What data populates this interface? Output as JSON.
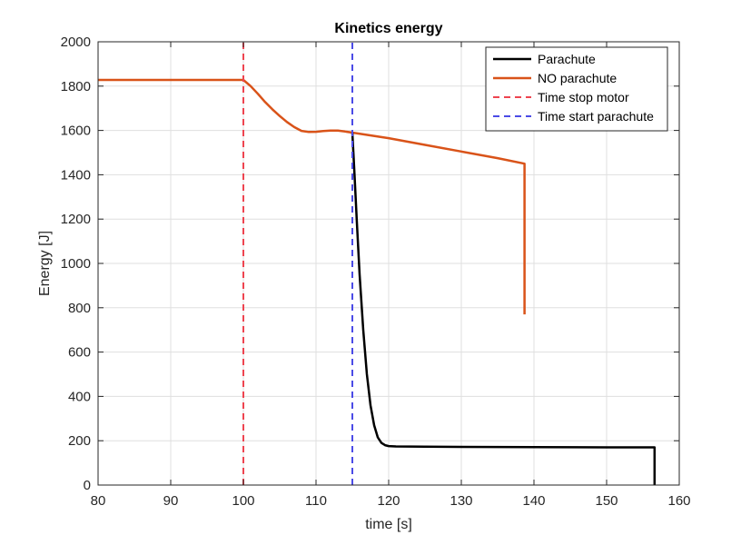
{
  "chart_data": {
    "type": "line",
    "title": "Kinetics energy",
    "xlabel": "time [s]",
    "ylabel": "Energy [J]",
    "xlim": [
      80,
      160
    ],
    "ylim": [
      0,
      2000
    ],
    "xticks": [
      80,
      90,
      100,
      110,
      120,
      130,
      140,
      150,
      160
    ],
    "yticks": [
      0,
      200,
      400,
      600,
      800,
      1000,
      1200,
      1400,
      1600,
      1800,
      2000
    ],
    "grid": true,
    "legend_position": "top-right",
    "series": [
      {
        "name": "Parachute",
        "color": "#000000",
        "style": "solid",
        "x": [
          115.0,
          115.3,
          115.6,
          116.0,
          116.5,
          117.0,
          117.5,
          118.0,
          118.5,
          119.0,
          119.5,
          120.0,
          121.0,
          125.0,
          130.0,
          140.0,
          150.0,
          156.6,
          156.6
        ],
        "y": [
          1590,
          1400,
          1200,
          950,
          700,
          500,
          360,
          270,
          215,
          190,
          180,
          176,
          174,
          173,
          172,
          171,
          170,
          170,
          0
        ]
      },
      {
        "name": "NO parachute",
        "color": "#D95319",
        "style": "solid",
        "x": [
          80,
          100,
          101,
          102,
          103,
          104,
          105,
          106,
          107,
          108,
          109,
          110,
          111,
          112,
          113,
          114,
          115,
          120,
          125,
          130,
          135,
          138.7,
          138.7
        ],
        "y": [
          1828,
          1828,
          1800,
          1765,
          1728,
          1695,
          1665,
          1638,
          1615,
          1598,
          1593,
          1594,
          1597,
          1599,
          1599,
          1595,
          1590,
          1565,
          1535,
          1505,
          1475,
          1450,
          770
        ]
      },
      {
        "name": "Time stop motor",
        "color": "#EE4450",
        "style": "dashed",
        "x": [
          100,
          100
        ],
        "y": [
          0,
          2000
        ]
      },
      {
        "name": "Time start parachute",
        "color": "#4B4BE6",
        "style": "dashed",
        "x": [
          115,
          115
        ],
        "y": [
          0,
          2000
        ]
      }
    ]
  }
}
